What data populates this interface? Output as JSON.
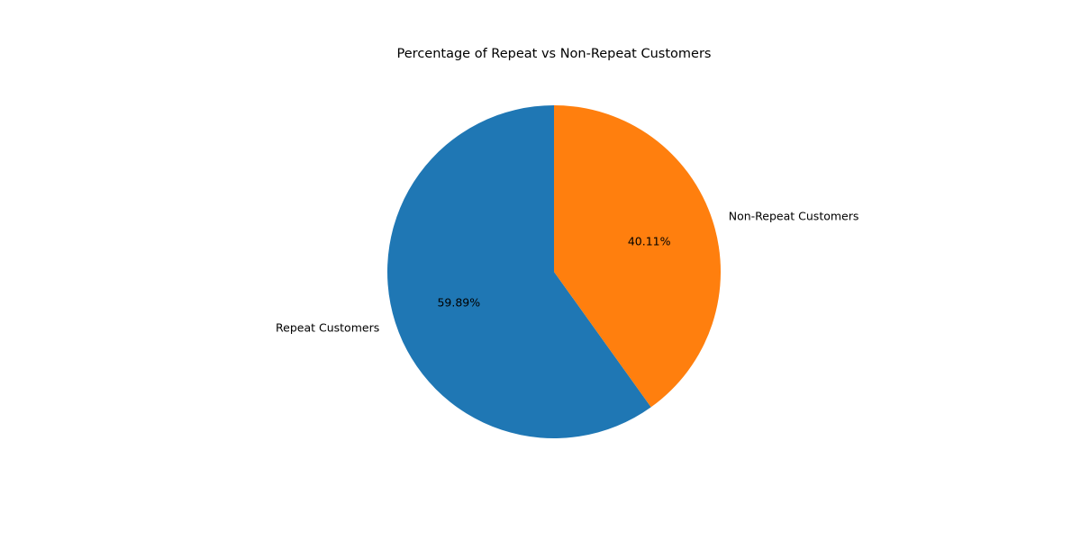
{
  "chart_data": {
    "type": "pie",
    "title": "Percentage of Repeat vs Non-Repeat Customers",
    "start_angle_deg": 90,
    "direction": "counterclockwise",
    "legend": "none",
    "slices": [
      {
        "label": "Repeat Customers",
        "value": 59.89,
        "pct_label": "59.89%",
        "color": "#1f77b4"
      },
      {
        "label": "Non-Repeat Customers",
        "value": 40.11,
        "pct_label": "40.11%",
        "color": "#ff7f0e"
      }
    ]
  }
}
